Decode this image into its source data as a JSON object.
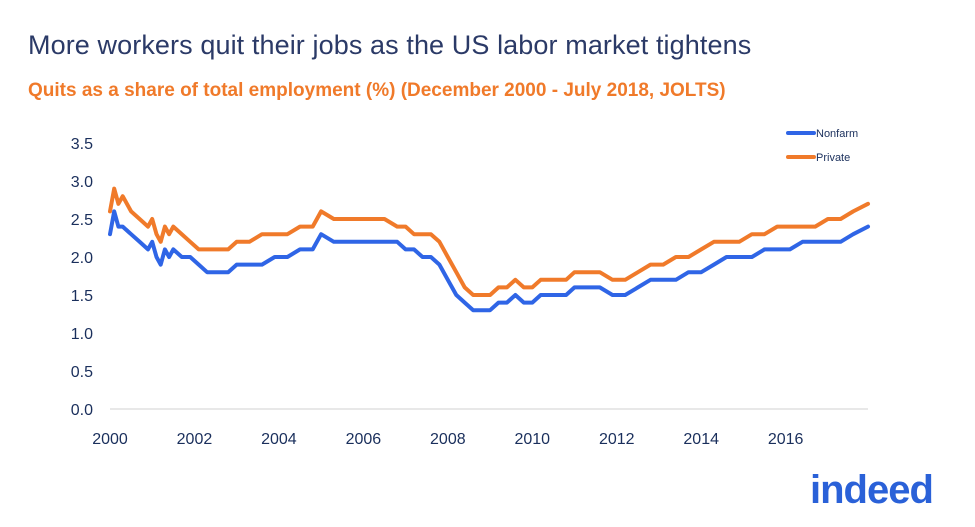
{
  "title": "More workers quit their jobs as the US labor market tightens",
  "subtitle": "Quits as a share of total employment (%) (December 2000 - July 2018, JOLTS)",
  "logo_text": "indeed",
  "colors": {
    "nonfarm": "#2f65e6",
    "private": "#f07a2a",
    "axis_text": "#1a2f5c",
    "title": "#2b3a67"
  },
  "chart_data": {
    "type": "line",
    "title": "More workers quit their jobs as the US labor market tightens",
    "subtitle": "Quits as a share of total employment (%) (December 2000 - July 2018, JOLTS)",
    "xlabel": "",
    "ylabel": "",
    "xlim": [
      2000,
      2017.95
    ],
    "ylim": [
      0,
      3.5
    ],
    "x_ticks": [
      "2000",
      "2002",
      "2004",
      "2006",
      "2008",
      "2010",
      "2012",
      "2014",
      "2016"
    ],
    "y_ticks": [
      "0.0",
      "0.5",
      "1.0",
      "1.5",
      "2.0",
      "2.5",
      "3.0",
      "3.5"
    ],
    "grid": false,
    "legend_position": "top-right",
    "series": [
      {
        "name": "Nonfarm",
        "color": "#2f65e6",
        "x": [
          2000.0,
          2000.1,
          2000.2,
          2000.3,
          2000.5,
          2000.7,
          2000.9,
          2001.0,
          2001.1,
          2001.2,
          2001.3,
          2001.4,
          2001.5,
          2001.7,
          2001.9,
          2002.1,
          2002.3,
          2002.5,
          2002.8,
          2003.0,
          2003.3,
          2003.6,
          2003.9,
          2004.2,
          2004.5,
          2004.8,
          2005.0,
          2005.3,
          2005.6,
          2005.9,
          2006.2,
          2006.5,
          2006.8,
          2007.0,
          2007.2,
          2007.4,
          2007.6,
          2007.8,
          2008.0,
          2008.2,
          2008.4,
          2008.6,
          2008.8,
          2009.0,
          2009.2,
          2009.4,
          2009.6,
          2009.8,
          2010.0,
          2010.2,
          2010.4,
          2010.6,
          2010.8,
          2011.0,
          2011.3,
          2011.6,
          2011.9,
          2012.2,
          2012.5,
          2012.8,
          2013.1,
          2013.4,
          2013.7,
          2014.0,
          2014.3,
          2014.6,
          2014.9,
          2015.2,
          2015.5,
          2015.8,
          2016.1,
          2016.4,
          2016.7,
          2017.0,
          2017.3,
          2017.6,
          2017.95
        ],
        "values": [
          2.3,
          2.6,
          2.4,
          2.4,
          2.3,
          2.2,
          2.1,
          2.2,
          2.0,
          1.9,
          2.1,
          2.0,
          2.1,
          2.0,
          2.0,
          1.9,
          1.8,
          1.8,
          1.8,
          1.9,
          1.9,
          1.9,
          2.0,
          2.0,
          2.1,
          2.1,
          2.3,
          2.2,
          2.2,
          2.2,
          2.2,
          2.2,
          2.2,
          2.1,
          2.1,
          2.0,
          2.0,
          1.9,
          1.7,
          1.5,
          1.4,
          1.3,
          1.3,
          1.3,
          1.4,
          1.4,
          1.5,
          1.4,
          1.4,
          1.5,
          1.5,
          1.5,
          1.5,
          1.6,
          1.6,
          1.6,
          1.5,
          1.5,
          1.6,
          1.7,
          1.7,
          1.7,
          1.8,
          1.8,
          1.9,
          2.0,
          2.0,
          2.0,
          2.1,
          2.1,
          2.1,
          2.2,
          2.2,
          2.2,
          2.2,
          2.3,
          2.4
        ]
      },
      {
        "name": "Private",
        "color": "#f07a2a",
        "x": [
          2000.0,
          2000.1,
          2000.2,
          2000.3,
          2000.5,
          2000.7,
          2000.9,
          2001.0,
          2001.1,
          2001.2,
          2001.3,
          2001.4,
          2001.5,
          2001.7,
          2001.9,
          2002.1,
          2002.3,
          2002.5,
          2002.8,
          2003.0,
          2003.3,
          2003.6,
          2003.9,
          2004.2,
          2004.5,
          2004.8,
          2005.0,
          2005.3,
          2005.6,
          2005.9,
          2006.2,
          2006.5,
          2006.8,
          2007.0,
          2007.2,
          2007.4,
          2007.6,
          2007.8,
          2008.0,
          2008.2,
          2008.4,
          2008.6,
          2008.8,
          2009.0,
          2009.2,
          2009.4,
          2009.6,
          2009.8,
          2010.0,
          2010.2,
          2010.4,
          2010.6,
          2010.8,
          2011.0,
          2011.3,
          2011.6,
          2011.9,
          2012.2,
          2012.5,
          2012.8,
          2013.1,
          2013.4,
          2013.7,
          2014.0,
          2014.3,
          2014.6,
          2014.9,
          2015.2,
          2015.5,
          2015.8,
          2016.1,
          2016.4,
          2016.7,
          2017.0,
          2017.3,
          2017.6,
          2017.95
        ],
        "values": [
          2.6,
          2.9,
          2.7,
          2.8,
          2.6,
          2.5,
          2.4,
          2.5,
          2.3,
          2.2,
          2.4,
          2.3,
          2.4,
          2.3,
          2.2,
          2.1,
          2.1,
          2.1,
          2.1,
          2.2,
          2.2,
          2.3,
          2.3,
          2.3,
          2.4,
          2.4,
          2.6,
          2.5,
          2.5,
          2.5,
          2.5,
          2.5,
          2.4,
          2.4,
          2.3,
          2.3,
          2.3,
          2.2,
          2.0,
          1.8,
          1.6,
          1.5,
          1.5,
          1.5,
          1.6,
          1.6,
          1.7,
          1.6,
          1.6,
          1.7,
          1.7,
          1.7,
          1.7,
          1.8,
          1.8,
          1.8,
          1.7,
          1.7,
          1.8,
          1.9,
          1.9,
          2.0,
          2.0,
          2.1,
          2.2,
          2.2,
          2.2,
          2.3,
          2.3,
          2.4,
          2.4,
          2.4,
          2.4,
          2.5,
          2.5,
          2.6,
          2.7
        ]
      }
    ]
  }
}
